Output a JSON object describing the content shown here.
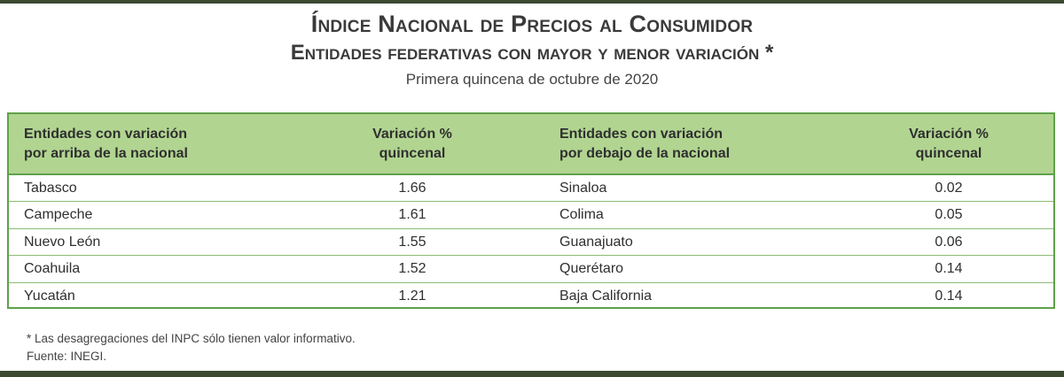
{
  "title": "Índice Nacional de Precios al Consumidor",
  "subtitle_main": "Entidades federativas con mayor y menor variación *",
  "period": "Primera quincena de octubre de 2020",
  "table": {
    "headers": {
      "above_entity": [
        "Entidades con variación",
        "por arriba de la nacional"
      ],
      "above_value": [
        "Variación %",
        "quincenal"
      ],
      "below_entity": [
        "Entidades con variación",
        "por debajo de la nacional"
      ],
      "below_value": [
        "Variación %",
        "quincenal"
      ]
    },
    "rows": [
      {
        "above_entity": "Tabasco",
        "above_value": "1.66",
        "below_entity": "Sinaloa",
        "below_value": "0.02"
      },
      {
        "above_entity": "Campeche",
        "above_value": "1.61",
        "below_entity": "Colima",
        "below_value": "0.05"
      },
      {
        "above_entity": "Nuevo León",
        "above_value": "1.55",
        "below_entity": "Guanajuato",
        "below_value": "0.06"
      },
      {
        "above_entity": "Coahuila",
        "above_value": "1.52",
        "below_entity": "Querétaro",
        "below_value": "0.14"
      },
      {
        "above_entity": "Yucatán",
        "above_value": "1.21",
        "below_entity": "Baja California",
        "below_value": "0.14"
      }
    ]
  },
  "footnote": "* Las desagregaciones del INPC sólo tienen valor informativo.",
  "source": "Fuente: INEGI."
}
